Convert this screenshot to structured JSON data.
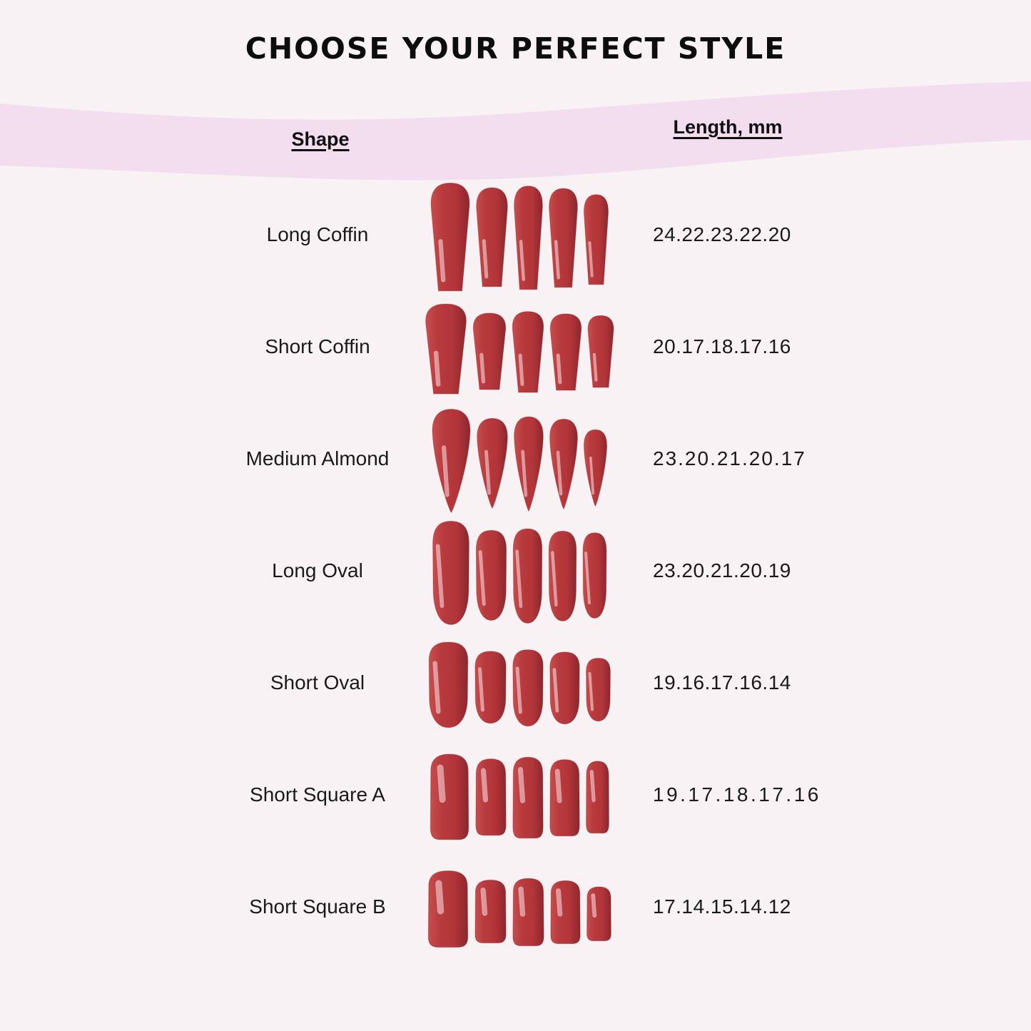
{
  "page": {
    "background": "#f8f2f5",
    "band_color": "#f3def0",
    "nail_color": "#b23539",
    "nail_color_dark": "#8d272d",
    "nail_color_light": "#c54e4d"
  },
  "header": {
    "title": "CHOOSE YOUR PERFECT STYLE",
    "col_shape": "Shape",
    "col_length": "Length, mm"
  },
  "rows": [
    {
      "shape": "Long Coffin",
      "lengths": "24.22.23.22.20",
      "type": "coffin",
      "mm": [
        24,
        22,
        23,
        22,
        20
      ]
    },
    {
      "shape": "Short Coffin",
      "lengths": "20.17.18.17.16",
      "type": "coffin",
      "mm": [
        20,
        17,
        18,
        17,
        16
      ]
    },
    {
      "shape": "Medium Almond",
      "lengths": "23.20.21.20.17",
      "type": "almond",
      "mm": [
        23,
        20,
        21,
        20,
        17
      ]
    },
    {
      "shape": "Long Oval",
      "lengths": "23.20.21.20.19",
      "type": "oval",
      "mm": [
        23,
        20,
        21,
        20,
        19
      ]
    },
    {
      "shape": "Short Oval",
      "lengths": "19.16.17.16.14",
      "type": "oval",
      "mm": [
        19,
        16,
        17,
        16,
        14
      ]
    },
    {
      "shape": "Short Square A",
      "lengths": "19.17.18.17.16",
      "type": "square",
      "mm": [
        19,
        17,
        18,
        17,
        16
      ]
    },
    {
      "shape": "Short Square B",
      "lengths": "17.14.15.14.12",
      "type": "square",
      "mm": [
        17,
        14,
        15,
        14,
        12
      ]
    }
  ]
}
